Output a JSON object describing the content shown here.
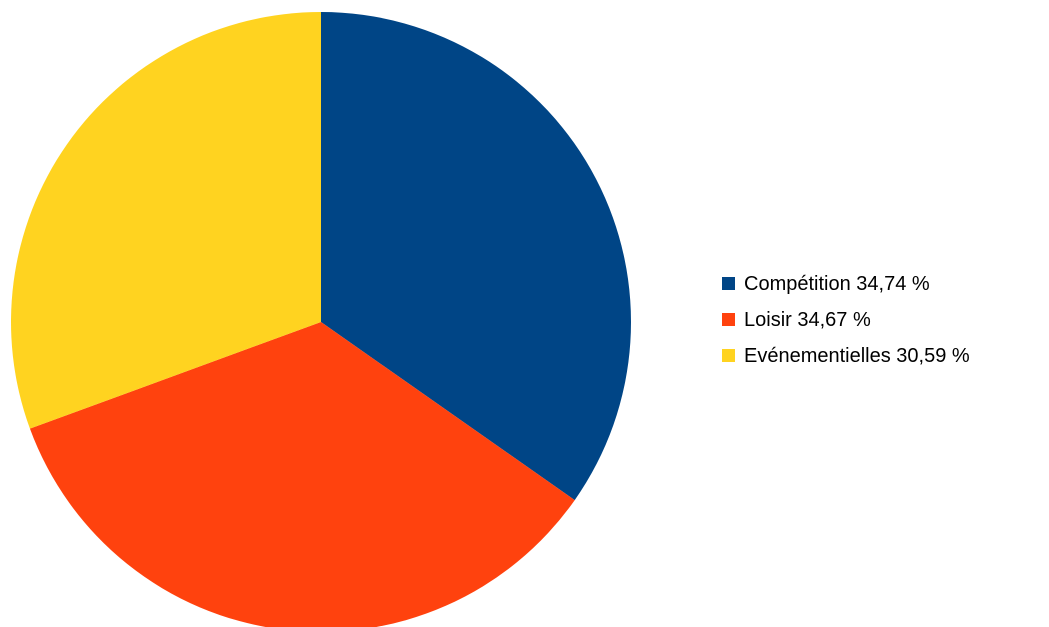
{
  "chart_data": {
    "type": "pie",
    "title": "",
    "legend_position": "right",
    "slices": [
      {
        "label": "Compétition",
        "value": 34.74,
        "legend_label": "Compétition 34,74 %",
        "color": "#004586"
      },
      {
        "label": "Loisir",
        "value": 34.67,
        "legend_label": "Loisir 34,67 %",
        "color": "#ff420e"
      },
      {
        "label": "Evénementielles",
        "value": 30.59,
        "legend_label": "Evénementielles 30,59 %",
        "color": "#ffd320"
      }
    ]
  }
}
